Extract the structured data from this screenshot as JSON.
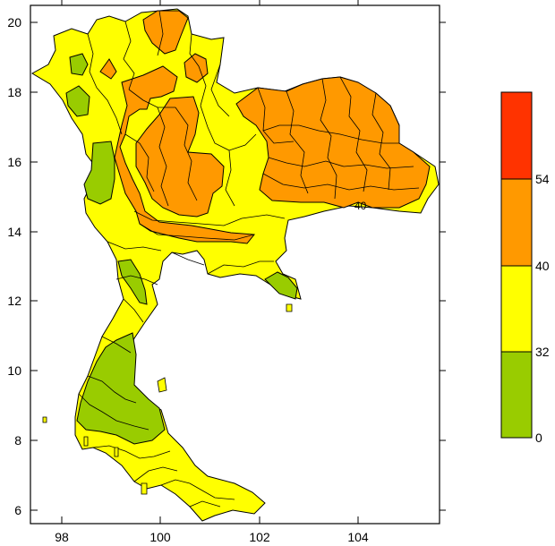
{
  "map": {
    "x_ticks": [
      "98",
      "100",
      "102",
      "104"
    ],
    "y_ticks": [
      "20",
      "18",
      "16",
      "14",
      "12",
      "10",
      "8",
      "6"
    ],
    "contour_label": "40"
  },
  "legend": {
    "levels": [
      "0",
      "32",
      "40",
      "54"
    ],
    "bands": [
      {
        "from": "0",
        "to": "32",
        "color": "#99cc00"
      },
      {
        "from": "32",
        "to": "40",
        "color": "#ffff00"
      },
      {
        "from": "40",
        "to": "54",
        "color": "#ff9900"
      },
      {
        "from": "54",
        "to": "",
        "color": "#ff3300"
      }
    ]
  },
  "colors": {
    "green": "#99cc00",
    "yellow": "#ffff00",
    "orange": "#ff9900",
    "red": "#ff3300"
  }
}
